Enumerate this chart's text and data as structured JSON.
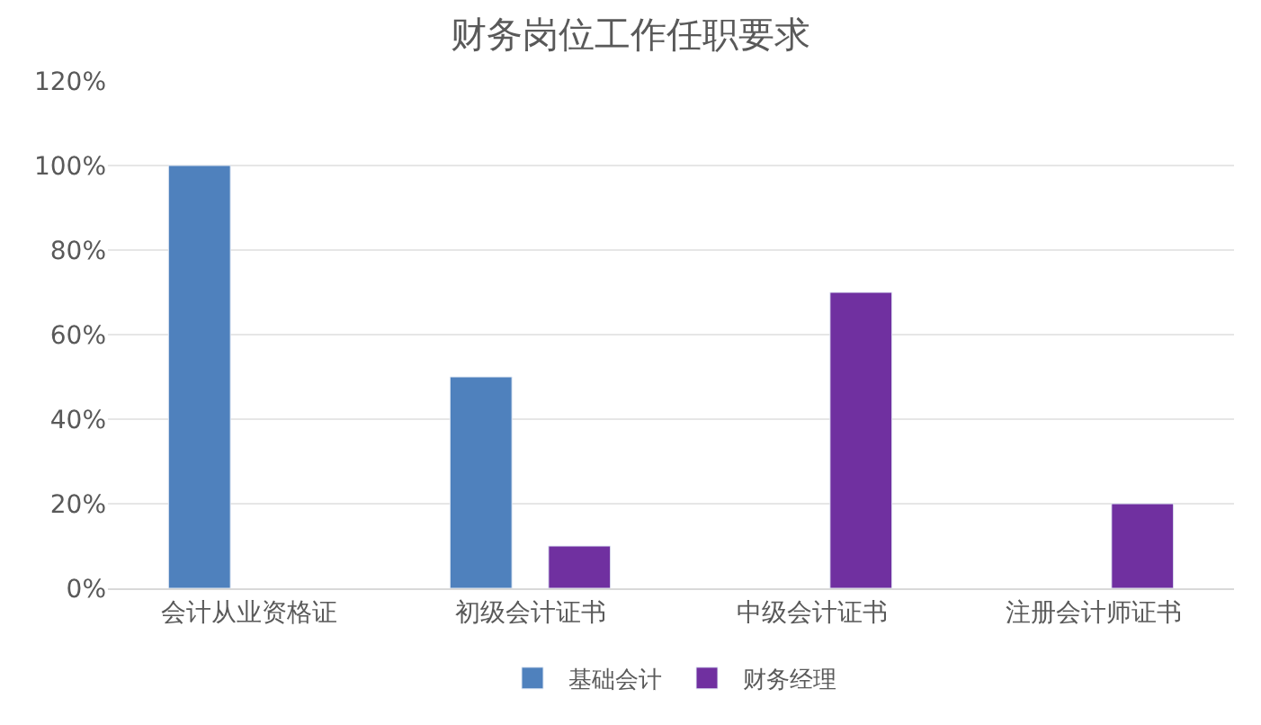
{
  "chart_data": {
    "type": "bar",
    "title": "财务岗位工作任职要求",
    "categories": [
      "会计从业资格证",
      "初级会计证书",
      "中级会计证书",
      "注册会计师证书"
    ],
    "series": [
      {
        "name": "基础会计",
        "color": "#4f81bd",
        "values": [
          100,
          50,
          null,
          null
        ]
      },
      {
        "name": "财务经理",
        "color": "#7030a0",
        "values": [
          null,
          10,
          70,
          20
        ]
      }
    ],
    "ylim": [
      0,
      120
    ],
    "yticks": [
      {
        "value": 0,
        "label": "0%"
      },
      {
        "value": 20,
        "label": "20%"
      },
      {
        "value": 40,
        "label": "40%"
      },
      {
        "value": 60,
        "label": "60%"
      },
      {
        "value": 80,
        "label": "80%"
      },
      {
        "value": 100,
        "label": "100%"
      },
      {
        "value": 120,
        "label": "120%"
      }
    ],
    "grid": "y",
    "legend": "bottom"
  }
}
